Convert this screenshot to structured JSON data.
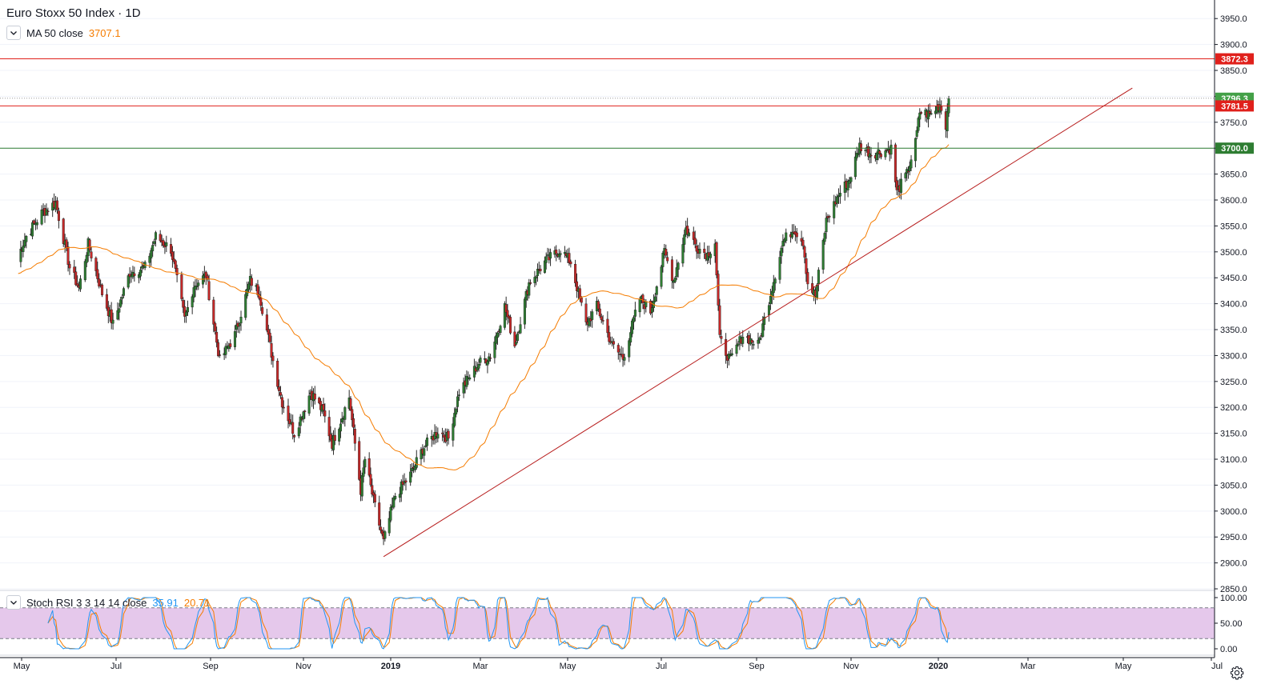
{
  "header": {
    "title": "Euro Stoxx 50 Index · 1D",
    "ma_label": "MA 50 close",
    "ma_value": "3707.1",
    "rsi_label": "Stoch RSI 3 3 14 14 close",
    "rsi_k_value": "35.91",
    "rsi_d_value": "20.71"
  },
  "colors": {
    "up": "#26a69a",
    "down": "#ef5350",
    "candle_up_fill": "#2e7d32",
    "candle_down_fill": "#c62828",
    "ma": "#f57c00",
    "resistance": "#e0201b",
    "support": "#2e7d32",
    "trendline": "#b71c1c",
    "last_price": "#4caf50",
    "stoch_k": "#2196f3",
    "stoch_d": "#f57c00",
    "stoch_band": "#e1bee7"
  },
  "icons": [
    "chevron-down-icon",
    "gear-icon"
  ],
  "chart_data": {
    "type": "candlestick",
    "title": "Euro Stoxx 50 Index · 1D",
    "ylim": [
      2850,
      3950
    ],
    "y_ticks": [
      "3950.0",
      "3900.0",
      "3850.0",
      "3800.0",
      "3750.0",
      "3700.0",
      "3650.0",
      "3600.0",
      "3550.0",
      "3500.0",
      "3450.0",
      "3400.0",
      "3350.0",
      "3300.0",
      "3250.0",
      "3200.0",
      "3150.0",
      "3100.0",
      "3050.0",
      "3000.0",
      "2950.0",
      "2900.0",
      "2850.0"
    ],
    "x_ticks": [
      "May",
      "Jul",
      "Sep",
      "Nov",
      "2019",
      "Mar",
      "May",
      "Jul",
      "Sep",
      "Nov",
      "2020",
      "Mar",
      "May",
      "Jul"
    ],
    "price_path": [
      [
        "2018-04-27",
        3485
      ],
      [
        "2018-05-04",
        3530
      ],
      [
        "2018-05-14",
        3575
      ],
      [
        "2018-05-23",
        3595
      ],
      [
        "2018-06-01",
        3470
      ],
      [
        "2018-06-07",
        3430
      ],
      [
        "2018-06-13",
        3515
      ],
      [
        "2018-06-22",
        3420
      ],
      [
        "2018-06-29",
        3360
      ],
      [
        "2018-07-10",
        3460
      ],
      [
        "2018-07-20",
        3470
      ],
      [
        "2018-07-27",
        3530
      ],
      [
        "2018-08-06",
        3505
      ],
      [
        "2018-08-15",
        3370
      ],
      [
        "2018-08-21",
        3435
      ],
      [
        "2018-08-29",
        3455
      ],
      [
        "2018-09-07",
        3290
      ],
      [
        "2018-09-17",
        3340
      ],
      [
        "2018-09-27",
        3445
      ],
      [
        "2018-10-03",
        3420
      ],
      [
        "2018-10-12",
        3290
      ],
      [
        "2018-10-18",
        3210
      ],
      [
        "2018-10-26",
        3150
      ],
      [
        "2018-11-06",
        3230
      ],
      [
        "2018-11-15",
        3190
      ],
      [
        "2018-11-21",
        3130
      ],
      [
        "2018-12-03",
        3220
      ],
      [
        "2018-12-11",
        3040
      ],
      [
        "2018-12-14",
        3100
      ],
      [
        "2018-12-20",
        3020
      ],
      [
        "2018-12-27",
        2940
      ],
      [
        "2019-01-04",
        3030
      ],
      [
        "2019-01-14",
        3070
      ],
      [
        "2019-01-22",
        3120
      ],
      [
        "2019-02-01",
        3155
      ],
      [
        "2019-02-08",
        3140
      ],
      [
        "2019-02-15",
        3230
      ],
      [
        "2019-02-28",
        3285
      ],
      [
        "2019-03-08",
        3300
      ],
      [
        "2019-03-18",
        3395
      ],
      [
        "2019-03-25",
        3320
      ],
      [
        "2019-04-04",
        3440
      ],
      [
        "2019-04-15",
        3480
      ],
      [
        "2019-04-26",
        3505
      ],
      [
        "2019-05-03",
        3480
      ],
      [
        "2019-05-13",
        3360
      ],
      [
        "2019-05-20",
        3395
      ],
      [
        "2019-05-30",
        3320
      ],
      [
        "2019-06-06",
        3295
      ],
      [
        "2019-06-17",
        3410
      ],
      [
        "2019-06-24",
        3385
      ],
      [
        "2019-07-03",
        3500
      ],
      [
        "2019-07-09",
        3445
      ],
      [
        "2019-07-17",
        3545
      ],
      [
        "2019-07-24",
        3510
      ],
      [
        "2019-07-31",
        3495
      ],
      [
        "2019-08-05",
        3520
      ],
      [
        "2019-08-08",
        3330
      ],
      [
        "2019-08-15",
        3290
      ],
      [
        "2019-08-23",
        3340
      ],
      [
        "2019-09-02",
        3320
      ],
      [
        "2019-09-10",
        3420
      ],
      [
        "2019-09-18",
        3520
      ],
      [
        "2019-09-25",
        3545
      ],
      [
        "2019-10-01",
        3520
      ],
      [
        "2019-10-04",
        3440
      ],
      [
        "2019-10-09",
        3415
      ],
      [
        "2019-10-16",
        3560
      ],
      [
        "2019-10-24",
        3610
      ],
      [
        "2019-10-31",
        3640
      ],
      [
        "2019-11-07",
        3705
      ],
      [
        "2019-11-15",
        3690
      ],
      [
        "2019-11-25",
        3695
      ],
      [
        "2019-11-29",
        3700
      ],
      [
        "2019-12-03",
        3615
      ],
      [
        "2019-12-10",
        3650
      ],
      [
        "2019-12-16",
        3710
      ],
      [
        "2019-12-19",
        3770
      ],
      [
        "2019-12-27",
        3765
      ],
      [
        "2020-01-02",
        3785
      ],
      [
        "2020-01-06",
        3745
      ],
      [
        "2020-01-08",
        3796
      ]
    ],
    "series": [
      {
        "name": "MA 50 close",
        "last_value": 3707.1
      },
      {
        "name": "Stoch RSI 3 3 14 14 close",
        "k_last": 35.91,
        "d_last": 20.71
      }
    ],
    "horizontal_levels": [
      {
        "value": 3872.3,
        "label": "3872.3",
        "style": "resistance"
      },
      {
        "value": 3796.3,
        "label": "3796.3",
        "style": "last_price"
      },
      {
        "value": 3781.5,
        "label": "3781.5",
        "style": "resistance"
      },
      {
        "value": 3700.0,
        "label": "3700.0",
        "style": "support"
      }
    ],
    "trendline": {
      "from": [
        "2018-12-27",
        2912
      ],
      "to": [
        "2020-05-07",
        3816
      ]
    },
    "oscillator": {
      "ylim": [
        0,
        100
      ],
      "y_ticks": [
        "100.00",
        "50.00",
        "0.00"
      ],
      "upper_band": 80,
      "lower_band": 20
    }
  }
}
